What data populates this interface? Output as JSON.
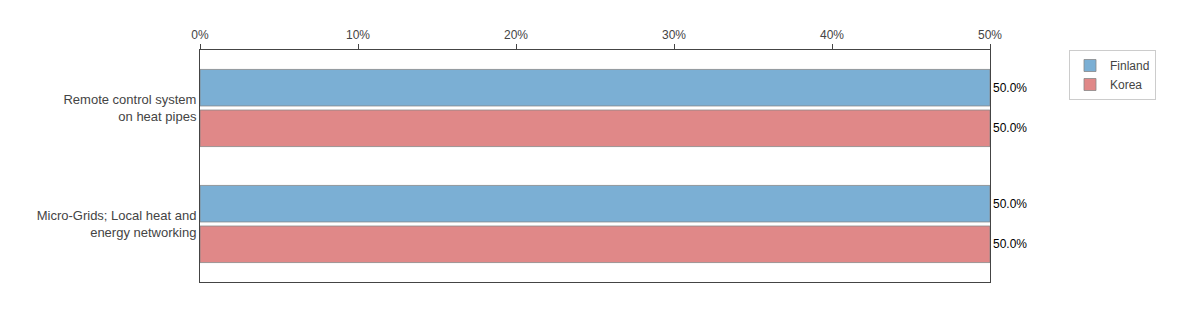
{
  "chart_data": {
    "type": "bar",
    "orientation": "horizontal",
    "categories": [
      "Remote control system\non heat pipes",
      "Micro-Grids; Local heat and\nenergy networking"
    ],
    "series": [
      {
        "name": "Finland",
        "color": "#7bafd4",
        "values": [
          50.0,
          50.0
        ],
        "value_labels": [
          "50.0%",
          "50.0%"
        ]
      },
      {
        "name": "Korea",
        "color": "#e08888",
        "values": [
          50.0,
          50.0
        ],
        "value_labels": [
          "50.0%",
          "50.0%"
        ]
      }
    ],
    "xlim": [
      0,
      50
    ],
    "xticks": [
      {
        "value": 0,
        "label": "0%"
      },
      {
        "value": 10,
        "label": "10%"
      },
      {
        "value": 20,
        "label": "20%"
      },
      {
        "value": 30,
        "label": "30%"
      },
      {
        "value": 40,
        "label": "40%"
      },
      {
        "value": 50,
        "label": "50%"
      }
    ],
    "grid": false,
    "legend": "upper right",
    "data_labels": true
  }
}
